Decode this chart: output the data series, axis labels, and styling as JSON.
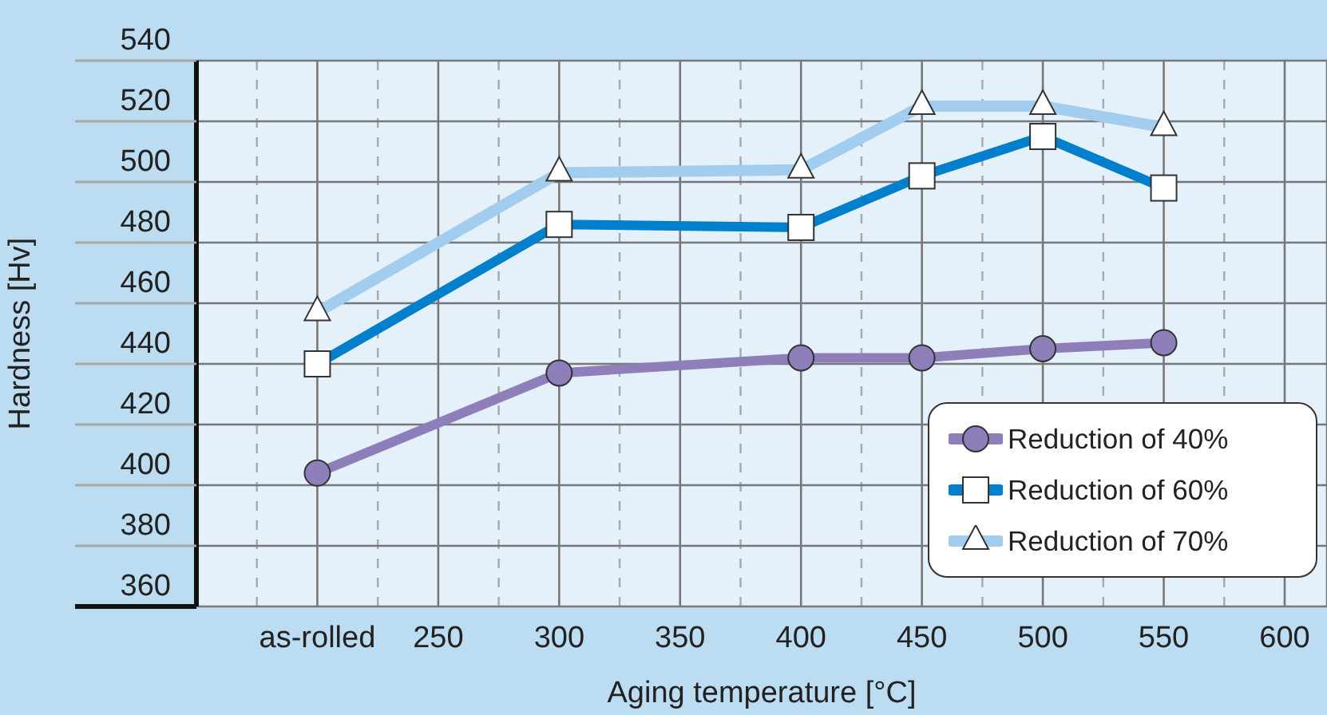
{
  "chart_data": {
    "type": "line",
    "xlabel": "Aging temperature [°C]",
    "ylabel": "Hardness [Hv]",
    "categories": [
      "as-rolled",
      "250",
      "300",
      "350",
      "400",
      "450",
      "500",
      "550",
      "600"
    ],
    "series": [
      {
        "name": "Reduction of 40%",
        "color": "#8e7fbb",
        "marker": "circle",
        "values": [
          404,
          null,
          437,
          null,
          442,
          442,
          445,
          447,
          null
        ]
      },
      {
        "name": "Reduction of 60%",
        "color": "#0080cc",
        "marker": "square",
        "values": [
          440,
          null,
          486,
          null,
          485,
          502,
          515,
          498,
          null
        ]
      },
      {
        "name": "Reduction of 70%",
        "color": "#a2cdee",
        "marker": "triangle",
        "values": [
          457,
          null,
          503,
          null,
          504,
          525,
          525,
          518,
          null
        ]
      }
    ],
    "ylim": [
      360,
      540
    ],
    "yticks": [
      360,
      380,
      400,
      420,
      440,
      460,
      480,
      500,
      520,
      540
    ],
    "grid": true,
    "legend": "bottom right",
    "line_style": "solid"
  }
}
